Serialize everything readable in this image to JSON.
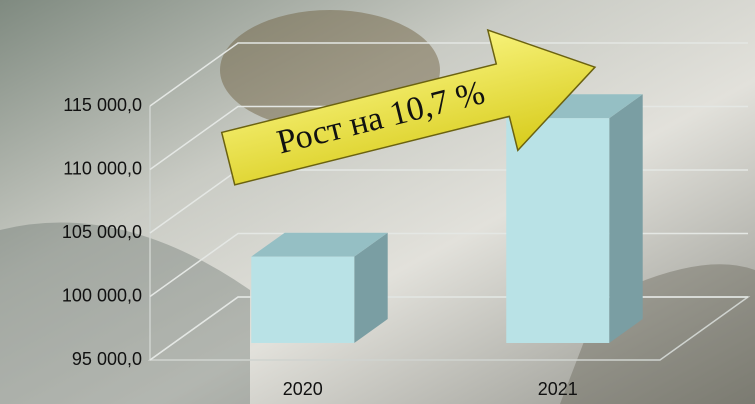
{
  "chart_data": {
    "type": "bar3d",
    "annotation": "Рост на 10,7 %",
    "categories": [
      "2020",
      "2021"
    ],
    "values": [
      101800,
      112700
    ],
    "color": "#b9e2e6",
    "ylim": [
      95000,
      115000
    ],
    "yticks": [
      {
        "value": 95000,
        "label": "95 000,0"
      },
      {
        "value": 100000,
        "label": "100 000,0"
      },
      {
        "value": 105000,
        "label": "105 000,0"
      },
      {
        "value": 110000,
        "label": "110 000,0"
      },
      {
        "value": 115000,
        "label": "115 000,0"
      }
    ],
    "grid": true
  }
}
